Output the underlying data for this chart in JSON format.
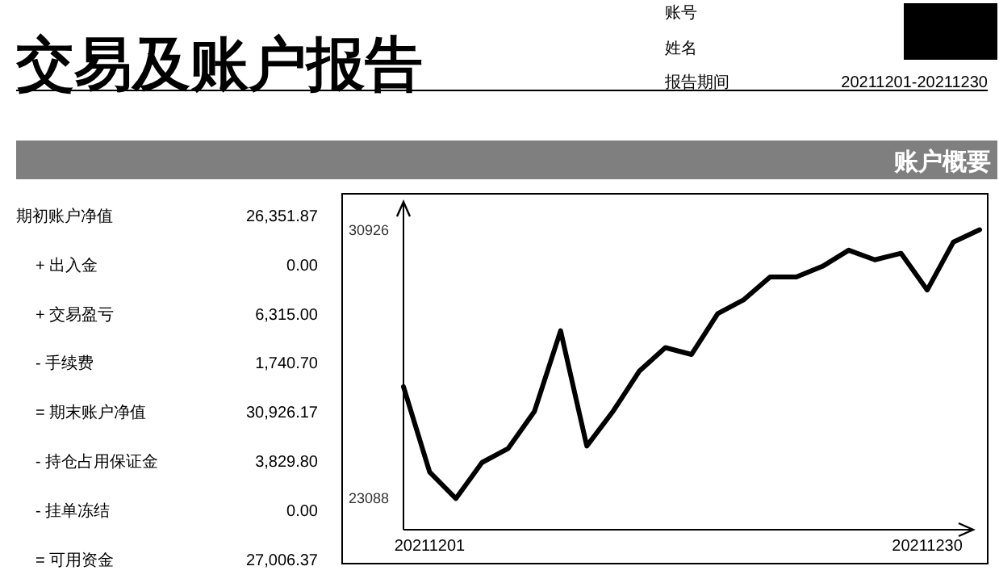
{
  "chart_data": [
    {
      "type": "other",
      "title": "交易及账户报告",
      "annotations": [
        "账号",
        "姓名",
        "报告期间",
        "20211201-20211230"
      ]
    },
    {
      "type": "other",
      "title": "账户概要",
      "annotations": [
        "期初账户净值",
        "26,351.87",
        "+ 出入金",
        "0.00",
        "+ 交易盈亏",
        "6,315.00",
        "- 手续费",
        "1,740.70",
        "= 期末账户净值",
        "30,926.17",
        "- 持仓占用保证金",
        "3,829.80",
        "- 挂单冻结",
        "0.00",
        "= 可用资金",
        "27,006.37"
      ]
    },
    {
      "type": "line",
      "categories": [
        null,
        "20211201",
        null,
        null,
        null,
        null,
        null,
        null,
        null,
        null,
        null,
        null,
        null,
        null,
        null,
        null,
        null,
        null,
        null,
        null,
        "20211230",
        null,
        null
      ],
      "series": [
        {
          "color": "#000000",
          "values": [
            26350,
            23860,
            23088,
            24140,
            24550,
            25630,
            27980,
            24620,
            25630,
            26800,
            27490,
            27290,
            28480,
            28890,
            29550,
            29550,
            29860,
            30330,
            30050,
            30240,
            29170,
            30570,
            30926
          ]
        }
      ],
      "ylim": [
        22180,
        31740
      ],
      "yticks": [
        23088,
        30926
      ],
      "grid": false,
      "marker": "none",
      "line_style": "solid"
    }
  ]
}
